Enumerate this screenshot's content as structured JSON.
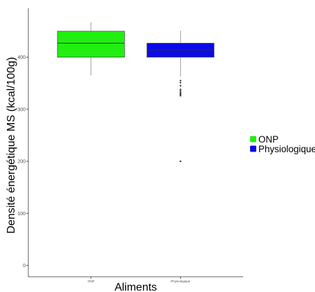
{
  "chart_data": {
    "type": "box",
    "xlabel": "Aliments",
    "ylabel": "Densité énergétique MS (kcal/100g)",
    "ylim": [
      -22,
      494
    ],
    "yticks": [
      0,
      100,
      200,
      300,
      400
    ],
    "grid": false,
    "legend_position": "right",
    "legend": [
      {
        "label": "ONP",
        "color": "#22ee11"
      },
      {
        "label": "Physiologique",
        "color": "#0a0ae6"
      }
    ],
    "categories": [
      "ONP",
      "Physiologique"
    ],
    "boxes": [
      {
        "category": "ONP",
        "color": "#22ee11",
        "whisker_low": 365,
        "q1": 400,
        "median": 427,
        "q3": 450,
        "whisker_high": 467,
        "outliers": []
      },
      {
        "category": "Physiologique",
        "color": "#0a0ae6",
        "whisker_low": 363,
        "q1": 400,
        "median": 414,
        "q3": 427,
        "whisker_high": 451,
        "outliers": [
          355,
          351,
          345,
          338,
          335,
          332,
          330,
          328,
          326,
          200
        ]
      }
    ]
  }
}
